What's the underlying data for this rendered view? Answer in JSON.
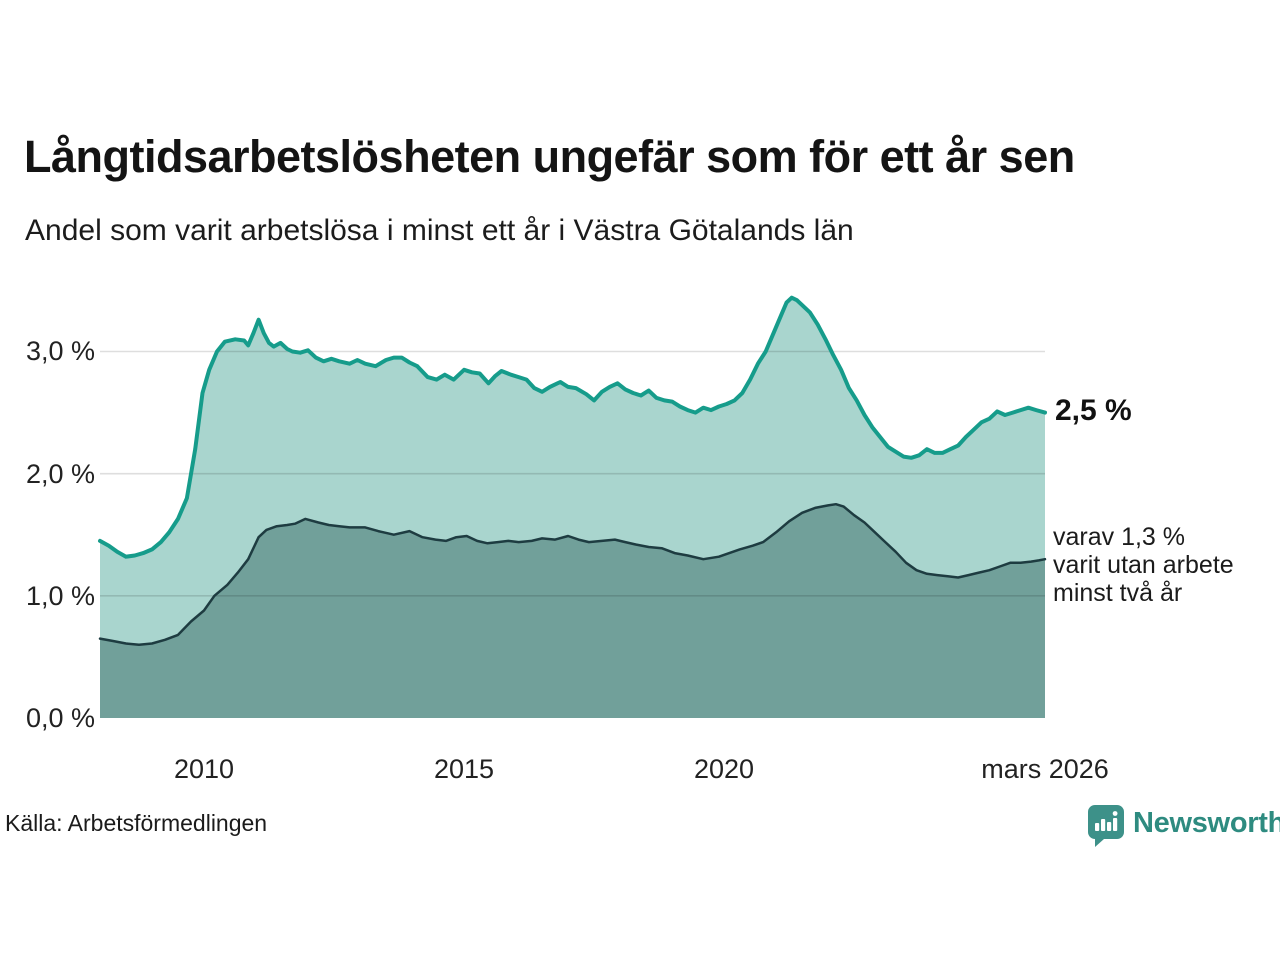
{
  "header": {
    "title": "Långtidsarbetslösheten ungefär som för ett år sen",
    "subtitle": "Andel som varit arbetslösa i minst ett år i Västra Götalands län"
  },
  "chart_data": {
    "type": "area",
    "title": "Långtidsarbetslösheten ungefär som för ett år sen",
    "subtitle": "Andel som varit arbetslösa i minst ett år i Västra Götalands län",
    "unit": "%",
    "grid": "horizontal gridlines at 1.0, 2.0, 3.0",
    "legend": "none (direct labels at right edge of lines)",
    "x_axis": {
      "range_years": [
        2008.0,
        2026.17
      ],
      "ticks": [
        {
          "label": "2010",
          "year": 2010
        },
        {
          "label": "2015",
          "year": 2015
        },
        {
          "label": "2020",
          "year": 2020
        },
        {
          "label": "mars 2026",
          "year": 2026.17
        }
      ]
    },
    "y_axis": {
      "range": [
        0,
        3.5
      ],
      "gridlines": [
        1.0,
        2.0,
        3.0
      ],
      "ticks": [
        {
          "label": "3,0 %",
          "value": 3.0
        },
        {
          "label": "2,0 %",
          "value": 2.0
        },
        {
          "label": "1,0 %",
          "value": 1.0
        },
        {
          "label": "0,0 %",
          "value": 0.0
        }
      ]
    },
    "series": [
      {
        "name": "andel arbetslösa minst ett år",
        "line_color": "#169c8b",
        "fill_color": "#a9d5ce",
        "stroke_width": 4,
        "last_value": 2.5,
        "points": [
          [
            2008.0,
            1.45
          ],
          [
            2008.17,
            1.41
          ],
          [
            2008.33,
            1.36
          ],
          [
            2008.5,
            1.32
          ],
          [
            2008.67,
            1.33
          ],
          [
            2008.83,
            1.35
          ],
          [
            2009.0,
            1.38
          ],
          [
            2009.17,
            1.44
          ],
          [
            2009.33,
            1.52
          ],
          [
            2009.5,
            1.63
          ],
          [
            2009.67,
            1.8
          ],
          [
            2009.83,
            2.2
          ],
          [
            2009.97,
            2.66
          ],
          [
            2010.1,
            2.85
          ],
          [
            2010.25,
            3.0
          ],
          [
            2010.4,
            3.08
          ],
          [
            2010.6,
            3.1
          ],
          [
            2010.77,
            3.09
          ],
          [
            2010.85,
            3.05
          ],
          [
            2010.95,
            3.15
          ],
          [
            2011.05,
            3.26
          ],
          [
            2011.15,
            3.15
          ],
          [
            2011.25,
            3.07
          ],
          [
            2011.34,
            3.04
          ],
          [
            2011.47,
            3.07
          ],
          [
            2011.6,
            3.02
          ],
          [
            2011.7,
            3.0
          ],
          [
            2011.85,
            2.99
          ],
          [
            2012.0,
            3.01
          ],
          [
            2012.15,
            2.95
          ],
          [
            2012.3,
            2.92
          ],
          [
            2012.45,
            2.94
          ],
          [
            2012.6,
            2.92
          ],
          [
            2012.8,
            2.9
          ],
          [
            2012.95,
            2.93
          ],
          [
            2013.1,
            2.9
          ],
          [
            2013.3,
            2.88
          ],
          [
            2013.5,
            2.93
          ],
          [
            2013.65,
            2.95
          ],
          [
            2013.8,
            2.95
          ],
          [
            2013.95,
            2.91
          ],
          [
            2014.1,
            2.88
          ],
          [
            2014.3,
            2.79
          ],
          [
            2014.47,
            2.77
          ],
          [
            2014.63,
            2.81
          ],
          [
            2014.8,
            2.77
          ],
          [
            2015.0,
            2.85
          ],
          [
            2015.15,
            2.83
          ],
          [
            2015.3,
            2.82
          ],
          [
            2015.47,
            2.74
          ],
          [
            2015.6,
            2.8
          ],
          [
            2015.72,
            2.84
          ],
          [
            2015.9,
            2.81
          ],
          [
            2016.05,
            2.79
          ],
          [
            2016.2,
            2.77
          ],
          [
            2016.35,
            2.7
          ],
          [
            2016.5,
            2.67
          ],
          [
            2016.65,
            2.71
          ],
          [
            2016.85,
            2.75
          ],
          [
            2017.0,
            2.71
          ],
          [
            2017.15,
            2.7
          ],
          [
            2017.35,
            2.65
          ],
          [
            2017.5,
            2.6
          ],
          [
            2017.65,
            2.67
          ],
          [
            2017.8,
            2.71
          ],
          [
            2017.95,
            2.74
          ],
          [
            2018.1,
            2.69
          ],
          [
            2018.25,
            2.66
          ],
          [
            2018.4,
            2.64
          ],
          [
            2018.55,
            2.68
          ],
          [
            2018.7,
            2.62
          ],
          [
            2018.85,
            2.6
          ],
          [
            2019.0,
            2.59
          ],
          [
            2019.15,
            2.55
          ],
          [
            2019.3,
            2.52
          ],
          [
            2019.45,
            2.5
          ],
          [
            2019.6,
            2.54
          ],
          [
            2019.75,
            2.52
          ],
          [
            2019.9,
            2.55
          ],
          [
            2020.05,
            2.57
          ],
          [
            2020.2,
            2.6
          ],
          [
            2020.35,
            2.66
          ],
          [
            2020.5,
            2.77
          ],
          [
            2020.65,
            2.9
          ],
          [
            2020.8,
            3.0
          ],
          [
            2020.95,
            3.15
          ],
          [
            2021.1,
            3.3
          ],
          [
            2021.2,
            3.4
          ],
          [
            2021.3,
            3.44
          ],
          [
            2021.4,
            3.42
          ],
          [
            2021.5,
            3.38
          ],
          [
            2021.65,
            3.32
          ],
          [
            2021.8,
            3.22
          ],
          [
            2021.95,
            3.1
          ],
          [
            2022.1,
            2.97
          ],
          [
            2022.25,
            2.85
          ],
          [
            2022.4,
            2.7
          ],
          [
            2022.55,
            2.6
          ],
          [
            2022.7,
            2.48
          ],
          [
            2022.85,
            2.38
          ],
          [
            2023.0,
            2.3
          ],
          [
            2023.15,
            2.22
          ],
          [
            2023.3,
            2.18
          ],
          [
            2023.45,
            2.14
          ],
          [
            2023.6,
            2.13
          ],
          [
            2023.75,
            2.15
          ],
          [
            2023.9,
            2.2
          ],
          [
            2024.05,
            2.17
          ],
          [
            2024.2,
            2.17
          ],
          [
            2024.35,
            2.2
          ],
          [
            2024.5,
            2.23
          ],
          [
            2024.65,
            2.3
          ],
          [
            2024.8,
            2.36
          ],
          [
            2024.95,
            2.42
          ],
          [
            2025.1,
            2.45
          ],
          [
            2025.25,
            2.51
          ],
          [
            2025.4,
            2.48
          ],
          [
            2025.55,
            2.5
          ],
          [
            2025.7,
            2.52
          ],
          [
            2025.85,
            2.54
          ],
          [
            2026.0,
            2.52
          ],
          [
            2026.17,
            2.5
          ]
        ]
      },
      {
        "name": "varav utan arbete minst två år",
        "line_color": "#1e3c41",
        "fill_color": "#71a09a",
        "stroke_width": 2.5,
        "last_value": 1.3,
        "points": [
          [
            2008.0,
            0.65
          ],
          [
            2008.25,
            0.63
          ],
          [
            2008.5,
            0.61
          ],
          [
            2008.75,
            0.6
          ],
          [
            2009.0,
            0.61
          ],
          [
            2009.25,
            0.64
          ],
          [
            2009.5,
            0.68
          ],
          [
            2009.75,
            0.79
          ],
          [
            2010.0,
            0.88
          ],
          [
            2010.2,
            1.0
          ],
          [
            2010.45,
            1.09
          ],
          [
            2010.65,
            1.19
          ],
          [
            2010.85,
            1.3
          ],
          [
            2011.05,
            1.48
          ],
          [
            2011.2,
            1.54
          ],
          [
            2011.4,
            1.57
          ],
          [
            2011.6,
            1.58
          ],
          [
            2011.75,
            1.59
          ],
          [
            2011.95,
            1.63
          ],
          [
            2012.2,
            1.6
          ],
          [
            2012.4,
            1.58
          ],
          [
            2012.6,
            1.57
          ],
          [
            2012.8,
            1.56
          ],
          [
            2013.1,
            1.56
          ],
          [
            2013.35,
            1.53
          ],
          [
            2013.65,
            1.5
          ],
          [
            2013.95,
            1.53
          ],
          [
            2014.2,
            1.48
          ],
          [
            2014.45,
            1.46
          ],
          [
            2014.65,
            1.45
          ],
          [
            2014.85,
            1.48
          ],
          [
            2015.05,
            1.49
          ],
          [
            2015.25,
            1.45
          ],
          [
            2015.45,
            1.43
          ],
          [
            2015.65,
            1.44
          ],
          [
            2015.85,
            1.45
          ],
          [
            2016.05,
            1.44
          ],
          [
            2016.3,
            1.45
          ],
          [
            2016.5,
            1.47
          ],
          [
            2016.75,
            1.46
          ],
          [
            2017.0,
            1.49
          ],
          [
            2017.2,
            1.46
          ],
          [
            2017.4,
            1.44
          ],
          [
            2017.65,
            1.45
          ],
          [
            2017.9,
            1.46
          ],
          [
            2018.1,
            1.44
          ],
          [
            2018.3,
            1.42
          ],
          [
            2018.55,
            1.4
          ],
          [
            2018.8,
            1.39
          ],
          [
            2019.05,
            1.35
          ],
          [
            2019.3,
            1.33
          ],
          [
            2019.6,
            1.3
          ],
          [
            2019.9,
            1.32
          ],
          [
            2020.1,
            1.35
          ],
          [
            2020.3,
            1.38
          ],
          [
            2020.55,
            1.41
          ],
          [
            2020.75,
            1.44
          ],
          [
            2021.0,
            1.52
          ],
          [
            2021.25,
            1.61
          ],
          [
            2021.5,
            1.68
          ],
          [
            2021.75,
            1.72
          ],
          [
            2022.0,
            1.74
          ],
          [
            2022.15,
            1.75
          ],
          [
            2022.3,
            1.73
          ],
          [
            2022.5,
            1.66
          ],
          [
            2022.7,
            1.6
          ],
          [
            2022.9,
            1.52
          ],
          [
            2023.1,
            1.44
          ],
          [
            2023.3,
            1.36
          ],
          [
            2023.5,
            1.27
          ],
          [
            2023.7,
            1.21
          ],
          [
            2023.9,
            1.18
          ],
          [
            2024.1,
            1.17
          ],
          [
            2024.3,
            1.16
          ],
          [
            2024.5,
            1.15
          ],
          [
            2024.7,
            1.17
          ],
          [
            2024.9,
            1.19
          ],
          [
            2025.1,
            1.21
          ],
          [
            2025.3,
            1.24
          ],
          [
            2025.5,
            1.27
          ],
          [
            2025.7,
            1.27
          ],
          [
            2025.9,
            1.28
          ],
          [
            2026.05,
            1.29
          ],
          [
            2026.17,
            1.3
          ]
        ]
      }
    ],
    "annotations": [
      {
        "text": "2,5 %",
        "value": 2.5,
        "bold": true
      },
      {
        "lines": [
          "varav 1,3 %",
          "varit utan arbete",
          "minst två år"
        ],
        "value": 1.3
      }
    ]
  },
  "footer": {
    "source": "Källa: Arbetsförmedlingen",
    "brand": "Newsworthy",
    "brand_color": "#2e8b80",
    "logo_icon": "speech-bubble-bar-chart-icon"
  }
}
